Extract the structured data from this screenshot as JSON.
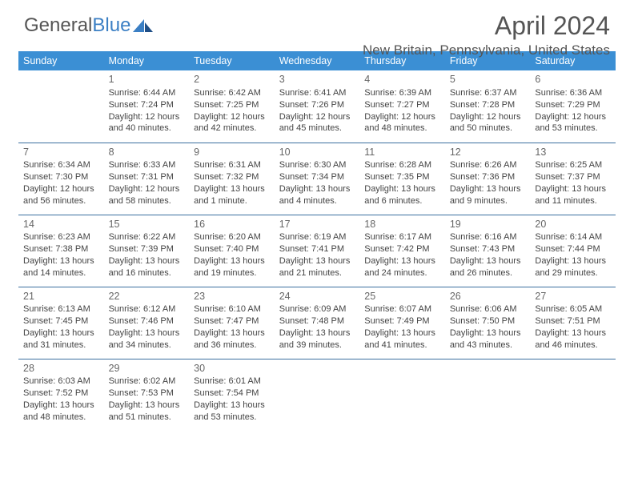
{
  "logo": {
    "text1": "General",
    "text2": "Blue"
  },
  "header": {
    "month": "April 2024",
    "location": "New Britain, Pennsylvania, United States"
  },
  "columns": [
    "Sunday",
    "Monday",
    "Tuesday",
    "Wednesday",
    "Thursday",
    "Friday",
    "Saturday"
  ],
  "colors": {
    "header_bg": "#3b8fd4",
    "header_fg": "#ffffff",
    "row_border": "#3b6f9f",
    "logo_blue": "#3b7fc4",
    "text": "#444444",
    "title": "#555555"
  },
  "weeks": [
    [
      null,
      {
        "num": "1",
        "sunrise": "6:44 AM",
        "sunset": "7:24 PM",
        "daylight": "12 hours and 40 minutes."
      },
      {
        "num": "2",
        "sunrise": "6:42 AM",
        "sunset": "7:25 PM",
        "daylight": "12 hours and 42 minutes."
      },
      {
        "num": "3",
        "sunrise": "6:41 AM",
        "sunset": "7:26 PM",
        "daylight": "12 hours and 45 minutes."
      },
      {
        "num": "4",
        "sunrise": "6:39 AM",
        "sunset": "7:27 PM",
        "daylight": "12 hours and 48 minutes."
      },
      {
        "num": "5",
        "sunrise": "6:37 AM",
        "sunset": "7:28 PM",
        "daylight": "12 hours and 50 minutes."
      },
      {
        "num": "6",
        "sunrise": "6:36 AM",
        "sunset": "7:29 PM",
        "daylight": "12 hours and 53 minutes."
      }
    ],
    [
      {
        "num": "7",
        "sunrise": "6:34 AM",
        "sunset": "7:30 PM",
        "daylight": "12 hours and 56 minutes."
      },
      {
        "num": "8",
        "sunrise": "6:33 AM",
        "sunset": "7:31 PM",
        "daylight": "12 hours and 58 minutes."
      },
      {
        "num": "9",
        "sunrise": "6:31 AM",
        "sunset": "7:32 PM",
        "daylight": "13 hours and 1 minute."
      },
      {
        "num": "10",
        "sunrise": "6:30 AM",
        "sunset": "7:34 PM",
        "daylight": "13 hours and 4 minutes."
      },
      {
        "num": "11",
        "sunrise": "6:28 AM",
        "sunset": "7:35 PM",
        "daylight": "13 hours and 6 minutes."
      },
      {
        "num": "12",
        "sunrise": "6:26 AM",
        "sunset": "7:36 PM",
        "daylight": "13 hours and 9 minutes."
      },
      {
        "num": "13",
        "sunrise": "6:25 AM",
        "sunset": "7:37 PM",
        "daylight": "13 hours and 11 minutes."
      }
    ],
    [
      {
        "num": "14",
        "sunrise": "6:23 AM",
        "sunset": "7:38 PM",
        "daylight": "13 hours and 14 minutes."
      },
      {
        "num": "15",
        "sunrise": "6:22 AM",
        "sunset": "7:39 PM",
        "daylight": "13 hours and 16 minutes."
      },
      {
        "num": "16",
        "sunrise": "6:20 AM",
        "sunset": "7:40 PM",
        "daylight": "13 hours and 19 minutes."
      },
      {
        "num": "17",
        "sunrise": "6:19 AM",
        "sunset": "7:41 PM",
        "daylight": "13 hours and 21 minutes."
      },
      {
        "num": "18",
        "sunrise": "6:17 AM",
        "sunset": "7:42 PM",
        "daylight": "13 hours and 24 minutes."
      },
      {
        "num": "19",
        "sunrise": "6:16 AM",
        "sunset": "7:43 PM",
        "daylight": "13 hours and 26 minutes."
      },
      {
        "num": "20",
        "sunrise": "6:14 AM",
        "sunset": "7:44 PM",
        "daylight": "13 hours and 29 minutes."
      }
    ],
    [
      {
        "num": "21",
        "sunrise": "6:13 AM",
        "sunset": "7:45 PM",
        "daylight": "13 hours and 31 minutes."
      },
      {
        "num": "22",
        "sunrise": "6:12 AM",
        "sunset": "7:46 PM",
        "daylight": "13 hours and 34 minutes."
      },
      {
        "num": "23",
        "sunrise": "6:10 AM",
        "sunset": "7:47 PM",
        "daylight": "13 hours and 36 minutes."
      },
      {
        "num": "24",
        "sunrise": "6:09 AM",
        "sunset": "7:48 PM",
        "daylight": "13 hours and 39 minutes."
      },
      {
        "num": "25",
        "sunrise": "6:07 AM",
        "sunset": "7:49 PM",
        "daylight": "13 hours and 41 minutes."
      },
      {
        "num": "26",
        "sunrise": "6:06 AM",
        "sunset": "7:50 PM",
        "daylight": "13 hours and 43 minutes."
      },
      {
        "num": "27",
        "sunrise": "6:05 AM",
        "sunset": "7:51 PM",
        "daylight": "13 hours and 46 minutes."
      }
    ],
    [
      {
        "num": "28",
        "sunrise": "6:03 AM",
        "sunset": "7:52 PM",
        "daylight": "13 hours and 48 minutes."
      },
      {
        "num": "29",
        "sunrise": "6:02 AM",
        "sunset": "7:53 PM",
        "daylight": "13 hours and 51 minutes."
      },
      {
        "num": "30",
        "sunrise": "6:01 AM",
        "sunset": "7:54 PM",
        "daylight": "13 hours and 53 minutes."
      },
      null,
      null,
      null,
      null
    ]
  ],
  "labels": {
    "sunrise": "Sunrise:",
    "sunset": "Sunset:",
    "daylight": "Daylight:"
  }
}
